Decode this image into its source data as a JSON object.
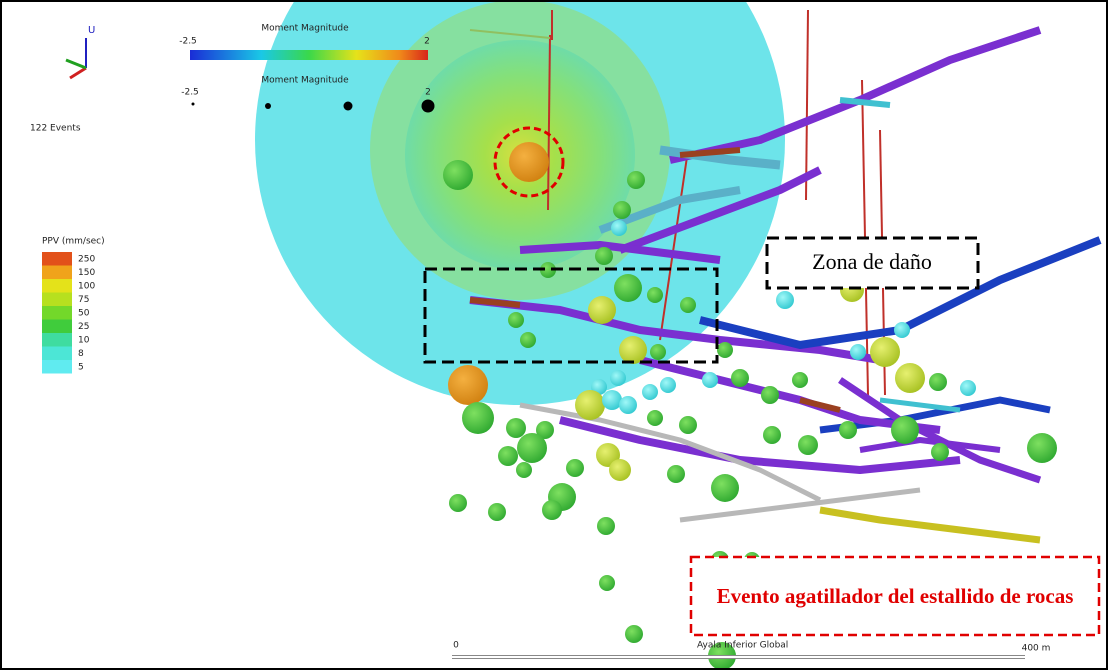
{
  "viewer": {
    "axis_label": "U",
    "events_count": "122 Events"
  },
  "magnitude_colorbar": {
    "title": "Moment Magnitude",
    "min": -2.5,
    "max": 2
  },
  "magnitude_size_legend": {
    "title": "Moment Magnitude",
    "min": -2.5,
    "max": 2
  },
  "ppv_legend": {
    "title": "PPV (mm/sec)",
    "items": [
      {
        "label": 250,
        "color": "#e2511a"
      },
      {
        "label": 150,
        "color": "#f0a31b"
      },
      {
        "label": 100,
        "color": "#e4e21a"
      },
      {
        "label": 75,
        "color": "#b7e01f"
      },
      {
        "label": 50,
        "color": "#73d82a"
      },
      {
        "label": 25,
        "color": "#40cc3c"
      },
      {
        "label": 10,
        "color": "#3fdca0"
      },
      {
        "label": 8,
        "color": "#4ce6d6"
      },
      {
        "label": 5,
        "color": "#60ebf0"
      }
    ]
  },
  "annotations": {
    "damage_zone": "Zona de daño",
    "trigger_event": "Evento agatillador del estallido de rocas"
  },
  "scale_bar": {
    "start": 0,
    "end": "400 m",
    "location": "Ayala Inferior Global"
  }
}
